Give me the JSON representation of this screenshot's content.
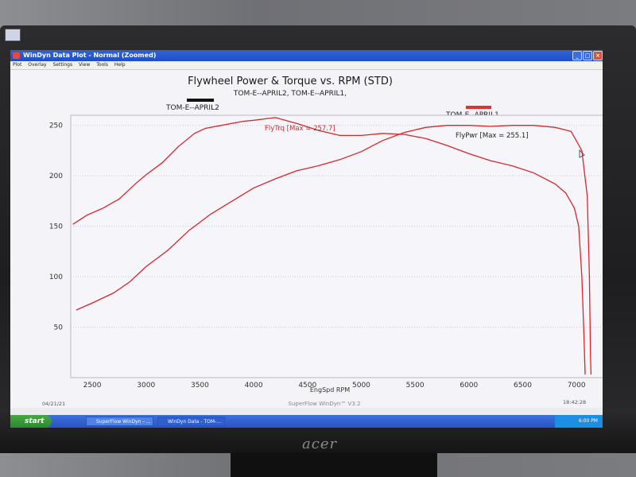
{
  "window": {
    "title": "WinDyn Data Plot - Normal  (Zoomed)",
    "menu": [
      "Plot",
      "Overlay",
      "Settings",
      "View",
      "Tools",
      "Help"
    ]
  },
  "taskbar": {
    "start_label": "start",
    "tasks": [
      "SuperFlow WinDyn - ...",
      "WinDyn Data - TOM-..."
    ],
    "clock": "6:00 PM"
  },
  "status": {
    "date": "04/21/21",
    "software": "SuperFlow WinDyn™ V3.2",
    "time": "18:42:28"
  },
  "colors": {
    "curve": "#d8262c",
    "legend_april2": "#111111",
    "legend_april1": "#e0322f",
    "background": "#f4f3f7"
  },
  "chart_data": {
    "type": "line",
    "title": "Flywheel Power & Torque vs. RPM (STD)",
    "subtitle": "TOM-E--APRIL2, TOM-E--APRIL1,",
    "xlabel": "EngSpd RPM",
    "ylabel": "",
    "xlim": [
      2300,
      7250
    ],
    "ylim": [
      0,
      260
    ],
    "x_ticks": [
      2500,
      3000,
      3500,
      4000,
      4500,
      5000,
      5500,
      6000,
      6500,
      7000
    ],
    "y_ticks": [
      50,
      100,
      150,
      200,
      250
    ],
    "legend": [
      {
        "name": "TOM-E--APRIL2",
        "color": "#111111"
      },
      {
        "name": "TOM-E--APRIL1",
        "color": "#e0322f"
      }
    ],
    "annotations": [
      "FlyTrq [Max = 257.7]",
      "FlyPwr [Max = 255.1]"
    ],
    "series": [
      {
        "name": "FlyTrq",
        "points": [
          [
            2320,
            152
          ],
          [
            2450,
            161
          ],
          [
            2600,
            168
          ],
          [
            2750,
            177
          ],
          [
            2900,
            192
          ],
          [
            3000,
            201
          ],
          [
            3150,
            213
          ],
          [
            3300,
            229
          ],
          [
            3450,
            242
          ],
          [
            3550,
            247
          ],
          [
            3700,
            250
          ],
          [
            3900,
            254
          ],
          [
            4000,
            255
          ],
          [
            4200,
            257.7
          ],
          [
            4400,
            252
          ],
          [
            4600,
            245
          ],
          [
            4800,
            240
          ],
          [
            5000,
            240
          ],
          [
            5200,
            242
          ],
          [
            5400,
            241
          ],
          [
            5600,
            237
          ],
          [
            5800,
            230
          ],
          [
            6000,
            222
          ],
          [
            6200,
            215
          ],
          [
            6400,
            210
          ],
          [
            6600,
            203
          ],
          [
            6800,
            192
          ],
          [
            6900,
            183
          ],
          [
            6980,
            168
          ],
          [
            7020,
            150
          ],
          [
            7050,
            100
          ],
          [
            7070,
            40
          ],
          [
            7080,
            3
          ]
        ]
      },
      {
        "name": "FlyPwr",
        "points": [
          [
            2350,
            67
          ],
          [
            2500,
            74
          ],
          [
            2700,
            84
          ],
          [
            2850,
            95
          ],
          [
            3000,
            110
          ],
          [
            3200,
            126
          ],
          [
            3400,
            146
          ],
          [
            3600,
            162
          ],
          [
            3800,
            175
          ],
          [
            4000,
            188
          ],
          [
            4200,
            197
          ],
          [
            4400,
            205
          ],
          [
            4600,
            210
          ],
          [
            4800,
            216
          ],
          [
            5000,
            224
          ],
          [
            5200,
            235
          ],
          [
            5400,
            243
          ],
          [
            5600,
            248
          ],
          [
            5800,
            250
          ],
          [
            6000,
            250
          ],
          [
            6200,
            249
          ],
          [
            6400,
            250
          ],
          [
            6600,
            250
          ],
          [
            6800,
            248
          ],
          [
            6950,
            244
          ],
          [
            7050,
            225
          ],
          [
            7100,
            180
          ],
          [
            7120,
            100
          ],
          [
            7130,
            20
          ],
          [
            7135,
            3
          ]
        ]
      }
    ]
  }
}
